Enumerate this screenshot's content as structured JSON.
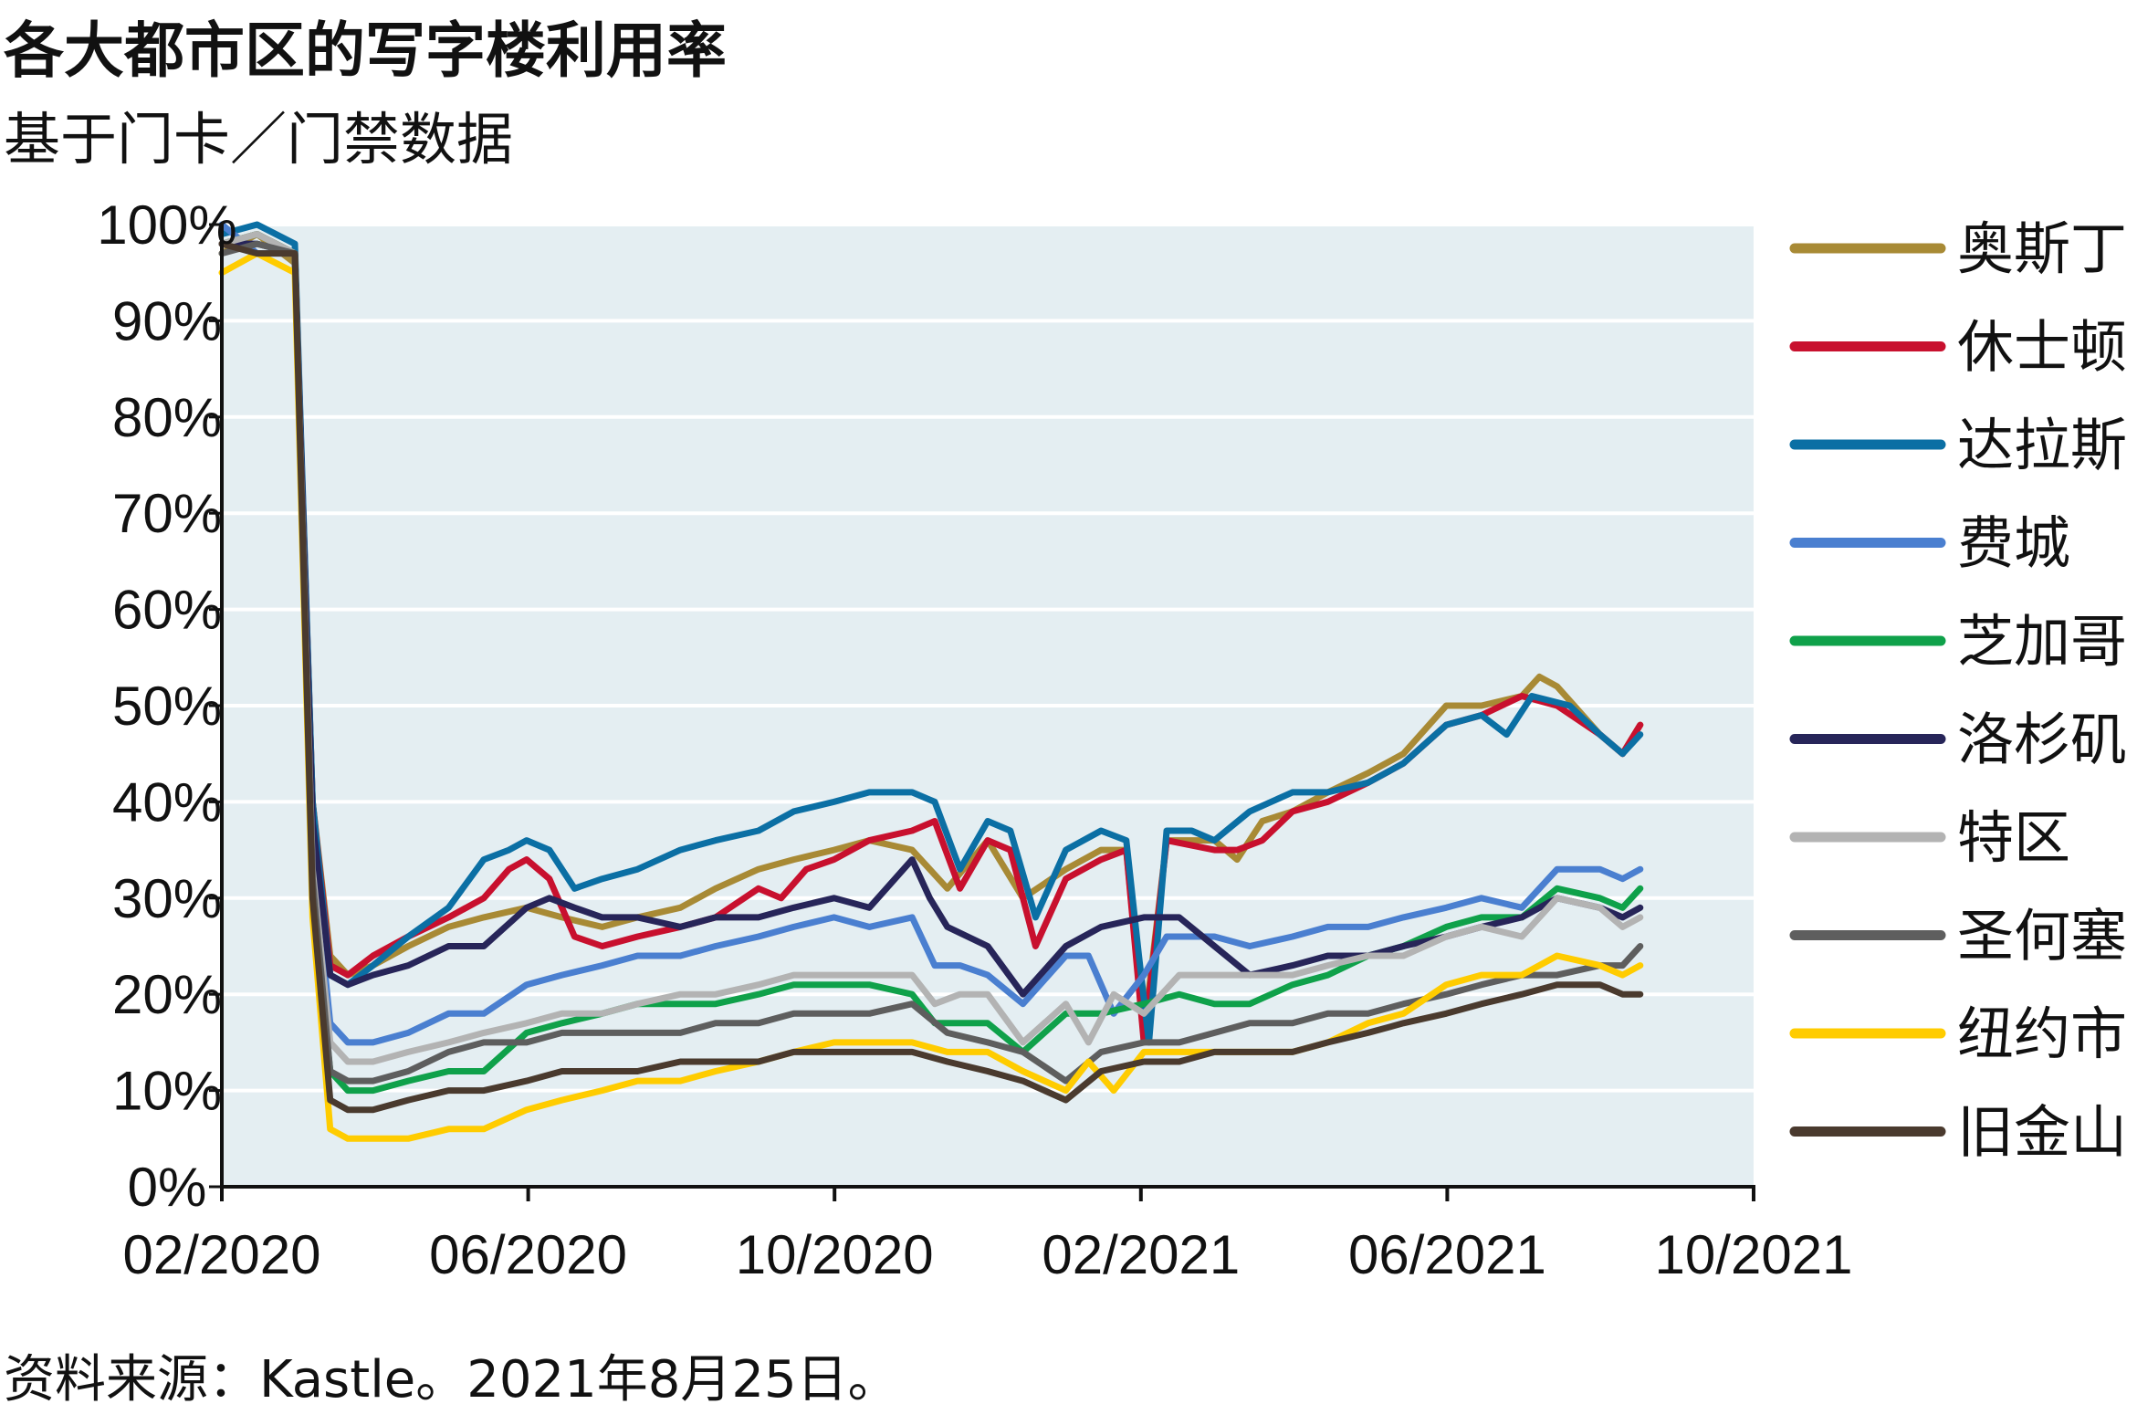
{
  "title": "各大都市区的写字楼利用率",
  "subtitle": "基于门卡／门禁数据",
  "source": "资料来源：Kastle。2021年8月25日。",
  "colors": {
    "plot_background": "#e4eef2",
    "gridline": "#ffffff",
    "axis": "#111111"
  },
  "chart_data": {
    "type": "line",
    "title": "各大都市区的写字楼利用率",
    "subtitle": "基于门卡／门禁数据",
    "ylim": [
      0,
      100
    ],
    "y_ticks": [
      "0%",
      "10%",
      "20%",
      "30%",
      "40%",
      "50%",
      "60%",
      "70%",
      "80%",
      "90%",
      "100%"
    ],
    "x_ticks": [
      "02/2020",
      "06/2020",
      "10/2020",
      "02/2021",
      "06/2021",
      "10/2021"
    ],
    "xlim": [
      "2020-02-01",
      "2021-10-01"
    ],
    "grid": true,
    "legend": "right",
    "series": [
      {
        "name": "奥斯丁",
        "color": "#a88a35",
        "x": [
          "2020-02-01",
          "2020-02-15",
          "2020-03-01",
          "2020-03-08",
          "2020-03-15",
          "2020-03-22",
          "2020-04-01",
          "2020-04-15",
          "2020-05-01",
          "2020-05-15",
          "2020-06-01",
          "2020-06-15",
          "2020-07-01",
          "2020-07-15",
          "2020-08-01",
          "2020-08-15",
          "2020-09-01",
          "2020-09-15",
          "2020-10-01",
          "2020-10-15",
          "2020-11-01",
          "2020-11-15",
          "2020-12-01",
          "2020-12-15",
          "2021-01-01",
          "2021-01-15",
          "2021-01-25",
          "2021-02-01",
          "2021-02-10",
          "2021-03-01",
          "2021-03-10",
          "2021-03-20",
          "2021-04-01",
          "2021-04-15",
          "2021-05-01",
          "2021-05-15",
          "2021-06-01",
          "2021-06-15",
          "2021-07-01",
          "2021-07-08",
          "2021-07-15",
          "2021-08-01",
          "2021-08-10",
          "2021-08-17"
        ],
        "values": [
          97,
          99,
          96,
          40,
          24,
          22,
          23,
          25,
          27,
          28,
          29,
          28,
          27,
          28,
          29,
          31,
          33,
          34,
          35,
          36,
          35,
          31,
          36,
          30,
          33,
          35,
          35,
          16,
          36,
          36,
          34,
          38,
          39,
          41,
          43,
          45,
          50,
          50,
          51,
          53,
          52,
          47,
          45,
          48
        ]
      },
      {
        "name": "休士顿",
        "color": "#c8102e",
        "x": [
          "2020-02-01",
          "2020-02-15",
          "2020-03-01",
          "2020-03-08",
          "2020-03-15",
          "2020-03-22",
          "2020-04-01",
          "2020-04-15",
          "2020-05-01",
          "2020-05-15",
          "2020-05-25",
          "2020-06-01",
          "2020-06-10",
          "2020-06-20",
          "2020-07-01",
          "2020-07-15",
          "2020-08-01",
          "2020-08-15",
          "2020-09-01",
          "2020-09-10",
          "2020-09-20",
          "2020-10-01",
          "2020-10-15",
          "2020-11-01",
          "2020-11-10",
          "2020-11-20",
          "2020-12-01",
          "2020-12-10",
          "2020-12-20",
          "2021-01-01",
          "2021-01-15",
          "2021-01-25",
          "2021-02-01",
          "2021-02-10",
          "2021-03-01",
          "2021-03-10",
          "2021-03-20",
          "2021-04-01",
          "2021-04-15",
          "2021-05-01",
          "2021-05-15",
          "2021-06-01",
          "2021-06-15",
          "2021-07-01",
          "2021-07-15",
          "2021-08-01",
          "2021-08-10",
          "2021-08-17"
        ],
        "values": [
          98,
          99,
          97,
          40,
          23,
          22,
          24,
          26,
          28,
          30,
          33,
          34,
          32,
          26,
          25,
          26,
          27,
          28,
          31,
          30,
          33,
          34,
          36,
          37,
          38,
          31,
          36,
          35,
          25,
          32,
          34,
          35,
          15,
          36,
          35,
          35,
          36,
          39,
          40,
          42,
          44,
          48,
          49,
          51,
          50,
          47,
          45,
          48
        ]
      },
      {
        "name": "达拉斯",
        "color": "#0b6fa4",
        "x": [
          "2020-02-01",
          "2020-02-15",
          "2020-03-01",
          "2020-03-08",
          "2020-03-15",
          "2020-03-22",
          "2020-04-01",
          "2020-04-15",
          "2020-05-01",
          "2020-05-15",
          "2020-05-25",
          "2020-06-01",
          "2020-06-10",
          "2020-06-20",
          "2020-07-01",
          "2020-07-15",
          "2020-08-01",
          "2020-08-15",
          "2020-09-01",
          "2020-09-15",
          "2020-10-01",
          "2020-10-15",
          "2020-11-01",
          "2020-11-10",
          "2020-11-20",
          "2020-12-01",
          "2020-12-10",
          "2020-12-20",
          "2021-01-01",
          "2021-01-15",
          "2021-01-25",
          "2021-01-30",
          "2021-02-03",
          "2021-02-10",
          "2021-02-20",
          "2021-03-01",
          "2021-03-15",
          "2021-04-01",
          "2021-04-15",
          "2021-05-01",
          "2021-05-15",
          "2021-06-01",
          "2021-06-15",
          "2021-06-25",
          "2021-07-05",
          "2021-07-20",
          "2021-08-01",
          "2021-08-10",
          "2021-08-17"
        ],
        "values": [
          99,
          100,
          98,
          40,
          22,
          21,
          23,
          26,
          29,
          34,
          35,
          36,
          35,
          31,
          32,
          33,
          35,
          36,
          37,
          39,
          40,
          41,
          41,
          40,
          33,
          38,
          37,
          28,
          35,
          37,
          36,
          24,
          15,
          37,
          37,
          36,
          39,
          41,
          41,
          42,
          44,
          48,
          49,
          47,
          51,
          50,
          47,
          45,
          47
        ]
      },
      {
        "name": "费城",
        "color": "#4a7fd0",
        "x": [
          "2020-02-01",
          "2020-02-15",
          "2020-03-01",
          "2020-03-08",
          "2020-03-15",
          "2020-03-22",
          "2020-04-01",
          "2020-04-15",
          "2020-05-01",
          "2020-05-15",
          "2020-06-01",
          "2020-06-15",
          "2020-07-01",
          "2020-07-15",
          "2020-08-01",
          "2020-08-15",
          "2020-09-01",
          "2020-09-15",
          "2020-10-01",
          "2020-10-15",
          "2020-11-01",
          "2020-11-10",
          "2020-11-20",
          "2020-12-01",
          "2020-12-15",
          "2021-01-01",
          "2021-01-10",
          "2021-01-20",
          "2021-02-01",
          "2021-02-10",
          "2021-03-01",
          "2021-03-15",
          "2021-04-01",
          "2021-04-15",
          "2021-05-01",
          "2021-05-15",
          "2021-06-01",
          "2021-06-15",
          "2021-07-01",
          "2021-07-15",
          "2021-08-01",
          "2021-08-10",
          "2021-08-17"
        ],
        "values": [
          100,
          97,
          97,
          35,
          17,
          15,
          15,
          16,
          18,
          18,
          21,
          22,
          23,
          24,
          24,
          25,
          26,
          27,
          28,
          27,
          28,
          23,
          23,
          22,
          19,
          24,
          24,
          18,
          22,
          26,
          26,
          25,
          26,
          27,
          27,
          28,
          29,
          30,
          29,
          33,
          33,
          32,
          33
        ]
      },
      {
        "name": "芝加哥",
        "color": "#0fa14a",
        "x": [
          "2020-02-01",
          "2020-02-15",
          "2020-03-01",
          "2020-03-08",
          "2020-03-15",
          "2020-03-22",
          "2020-04-01",
          "2020-04-15",
          "2020-05-01",
          "2020-05-15",
          "2020-06-01",
          "2020-06-15",
          "2020-07-01",
          "2020-07-15",
          "2020-08-01",
          "2020-08-15",
          "2020-09-01",
          "2020-09-15",
          "2020-10-01",
          "2020-10-15",
          "2020-11-01",
          "2020-11-10",
          "2020-11-20",
          "2020-12-01",
          "2020-12-15",
          "2021-01-01",
          "2021-01-15",
          "2021-02-01",
          "2021-02-15",
          "2021-03-01",
          "2021-03-15",
          "2021-04-01",
          "2021-04-15",
          "2021-05-01",
          "2021-05-15",
          "2021-06-01",
          "2021-06-15",
          "2021-07-01",
          "2021-07-15",
          "2021-08-01",
          "2021-08-10",
          "2021-08-17"
        ],
        "values": [
          98,
          99,
          97,
          30,
          12,
          10,
          10,
          11,
          12,
          12,
          16,
          17,
          18,
          19,
          19,
          19,
          20,
          21,
          21,
          21,
          20,
          17,
          17,
          17,
          14,
          18,
          18,
          19,
          20,
          19,
          19,
          21,
          22,
          24,
          25,
          27,
          28,
          28,
          31,
          30,
          29,
          31
        ]
      },
      {
        "name": "洛杉矶",
        "color": "#272559",
        "x": [
          "2020-02-01",
          "2020-02-15",
          "2020-03-01",
          "2020-03-08",
          "2020-03-15",
          "2020-03-22",
          "2020-04-01",
          "2020-04-15",
          "2020-05-01",
          "2020-05-15",
          "2020-06-01",
          "2020-06-10",
          "2020-06-20",
          "2020-07-01",
          "2020-07-15",
          "2020-08-01",
          "2020-08-15",
          "2020-09-01",
          "2020-09-15",
          "2020-10-01",
          "2020-10-15",
          "2020-11-01",
          "2020-11-08",
          "2020-11-15",
          "2020-12-01",
          "2020-12-15",
          "2021-01-01",
          "2021-01-15",
          "2021-02-01",
          "2021-02-15",
          "2021-03-01",
          "2021-03-15",
          "2021-04-01",
          "2021-04-15",
          "2021-05-01",
          "2021-05-15",
          "2021-06-01",
          "2021-06-15",
          "2021-07-01",
          "2021-07-15",
          "2021-08-01",
          "2021-08-10",
          "2021-08-17"
        ],
        "values": [
          98,
          98,
          97,
          38,
          22,
          21,
          22,
          23,
          25,
          25,
          29,
          30,
          29,
          28,
          28,
          27,
          28,
          28,
          29,
          30,
          29,
          34,
          30,
          27,
          25,
          20,
          25,
          27,
          28,
          28,
          25,
          22,
          23,
          24,
          24,
          25,
          26,
          27,
          28,
          30,
          29,
          28,
          29
        ]
      },
      {
        "name": "特区",
        "color": "#b3b3b3",
        "x": [
          "2020-02-01",
          "2020-02-15",
          "2020-03-01",
          "2020-03-08",
          "2020-03-15",
          "2020-03-22",
          "2020-04-01",
          "2020-04-15",
          "2020-05-01",
          "2020-05-15",
          "2020-06-01",
          "2020-06-15",
          "2020-07-01",
          "2020-07-15",
          "2020-08-01",
          "2020-08-15",
          "2020-09-01",
          "2020-09-15",
          "2020-10-01",
          "2020-10-15",
          "2020-11-01",
          "2020-11-10",
          "2020-11-20",
          "2020-12-01",
          "2020-12-15",
          "2021-01-01",
          "2021-01-10",
          "2021-01-20",
          "2021-02-01",
          "2021-02-15",
          "2021-03-01",
          "2021-03-15",
          "2021-04-01",
          "2021-04-15",
          "2021-05-01",
          "2021-05-15",
          "2021-06-01",
          "2021-06-15",
          "2021-07-01",
          "2021-07-15",
          "2021-08-01",
          "2021-08-10",
          "2021-08-17"
        ],
        "values": [
          98,
          99,
          97,
          33,
          15,
          13,
          13,
          14,
          15,
          16,
          17,
          18,
          18,
          19,
          20,
          20,
          21,
          22,
          22,
          22,
          22,
          19,
          20,
          20,
          15,
          19,
          15,
          20,
          18,
          22,
          22,
          22,
          22,
          23,
          24,
          24,
          26,
          27,
          26,
          30,
          29,
          27,
          28
        ]
      },
      {
        "name": "圣何塞",
        "color": "#5e5e5e",
        "x": [
          "2020-02-01",
          "2020-02-15",
          "2020-03-01",
          "2020-03-08",
          "2020-03-15",
          "2020-03-22",
          "2020-04-01",
          "2020-04-15",
          "2020-05-01",
          "2020-05-15",
          "2020-06-01",
          "2020-06-15",
          "2020-07-01",
          "2020-07-15",
          "2020-08-01",
          "2020-08-15",
          "2020-09-01",
          "2020-09-15",
          "2020-10-01",
          "2020-10-15",
          "2020-11-01",
          "2020-11-15",
          "2020-12-01",
          "2020-12-15",
          "2021-01-01",
          "2021-01-15",
          "2021-02-01",
          "2021-02-15",
          "2021-03-01",
          "2021-03-15",
          "2021-04-01",
          "2021-04-15",
          "2021-05-01",
          "2021-05-15",
          "2021-06-01",
          "2021-06-15",
          "2021-07-01",
          "2021-07-15",
          "2021-08-01",
          "2021-08-10",
          "2021-08-17"
        ],
        "values": [
          97,
          98,
          97,
          32,
          12,
          11,
          11,
          12,
          14,
          15,
          15,
          16,
          16,
          16,
          16,
          17,
          17,
          18,
          18,
          18,
          19,
          16,
          15,
          14,
          11,
          14,
          15,
          15,
          16,
          17,
          17,
          18,
          18,
          19,
          20,
          21,
          22,
          22,
          23,
          23,
          25
        ]
      },
      {
        "name": "纽约市",
        "color": "#ffcc00",
        "x": [
          "2020-02-01",
          "2020-02-15",
          "2020-03-01",
          "2020-03-08",
          "2020-03-15",
          "2020-03-22",
          "2020-04-01",
          "2020-04-15",
          "2020-05-01",
          "2020-05-15",
          "2020-06-01",
          "2020-06-15",
          "2020-07-01",
          "2020-07-15",
          "2020-08-01",
          "2020-08-15",
          "2020-09-01",
          "2020-09-15",
          "2020-10-01",
          "2020-10-15",
          "2020-11-01",
          "2020-11-15",
          "2020-12-01",
          "2020-12-15",
          "2021-01-01",
          "2021-01-10",
          "2021-01-20",
          "2021-02-01",
          "2021-02-15",
          "2021-03-01",
          "2021-03-15",
          "2021-04-01",
          "2021-04-15",
          "2021-05-01",
          "2021-05-15",
          "2021-06-01",
          "2021-06-15",
          "2021-07-01",
          "2021-07-15",
          "2021-08-01",
          "2021-08-10",
          "2021-08-17"
        ],
        "values": [
          95,
          97,
          95,
          28,
          6,
          5,
          5,
          5,
          6,
          6,
          8,
          9,
          10,
          11,
          11,
          12,
          13,
          14,
          15,
          15,
          15,
          14,
          14,
          12,
          10,
          13,
          10,
          14,
          14,
          14,
          14,
          14,
          15,
          17,
          18,
          21,
          22,
          22,
          24,
          23,
          22,
          23
        ]
      },
      {
        "name": "旧金山",
        "color": "#4a3a2e",
        "x": [
          "2020-02-01",
          "2020-02-15",
          "2020-03-01",
          "2020-03-08",
          "2020-03-15",
          "2020-03-22",
          "2020-04-01",
          "2020-04-15",
          "2020-05-01",
          "2020-05-15",
          "2020-06-01",
          "2020-06-15",
          "2020-07-01",
          "2020-07-15",
          "2020-08-01",
          "2020-08-15",
          "2020-09-01",
          "2020-09-15",
          "2020-10-01",
          "2020-10-15",
          "2020-11-01",
          "2020-11-15",
          "2020-12-01",
          "2020-12-15",
          "2021-01-01",
          "2021-01-15",
          "2021-02-01",
          "2021-02-15",
          "2021-03-01",
          "2021-03-15",
          "2021-04-01",
          "2021-04-15",
          "2021-05-01",
          "2021-05-15",
          "2021-06-01",
          "2021-06-15",
          "2021-07-01",
          "2021-07-15",
          "2021-08-01",
          "2021-08-10",
          "2021-08-17"
        ],
        "values": [
          98,
          97,
          97,
          30,
          9,
          8,
          8,
          9,
          10,
          10,
          11,
          12,
          12,
          12,
          13,
          13,
          13,
          14,
          14,
          14,
          14,
          13,
          12,
          11,
          9,
          12,
          13,
          13,
          14,
          14,
          14,
          15,
          16,
          17,
          18,
          19,
          20,
          21,
          21,
          20,
          20
        ]
      }
    ]
  }
}
